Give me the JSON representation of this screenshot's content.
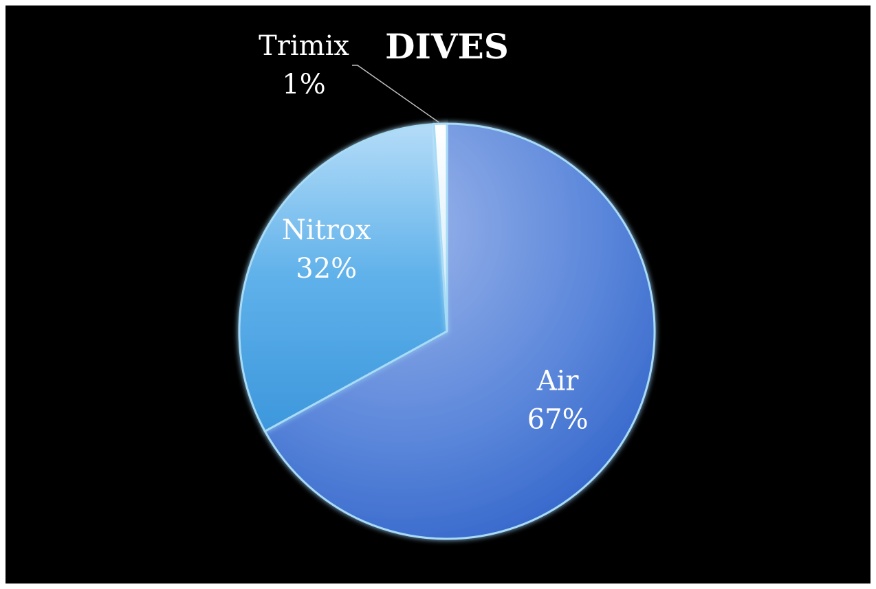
{
  "chart_data": {
    "type": "pie",
    "title": "DIVES",
    "slices": [
      {
        "label": "Air",
        "value": 67,
        "percent_label": "67%",
        "color": "#4f7fd8"
      },
      {
        "label": "Nitrox",
        "value": 32,
        "percent_label": "32%",
        "color": "#5aaee8"
      },
      {
        "label": "Trimix",
        "value": 1,
        "percent_label": "1%",
        "color": "#dff1fb"
      }
    ],
    "start_angle_deg": 0,
    "direction": "clockwise",
    "legend": "none",
    "background": "#000000",
    "label_color": "#ffffff"
  }
}
